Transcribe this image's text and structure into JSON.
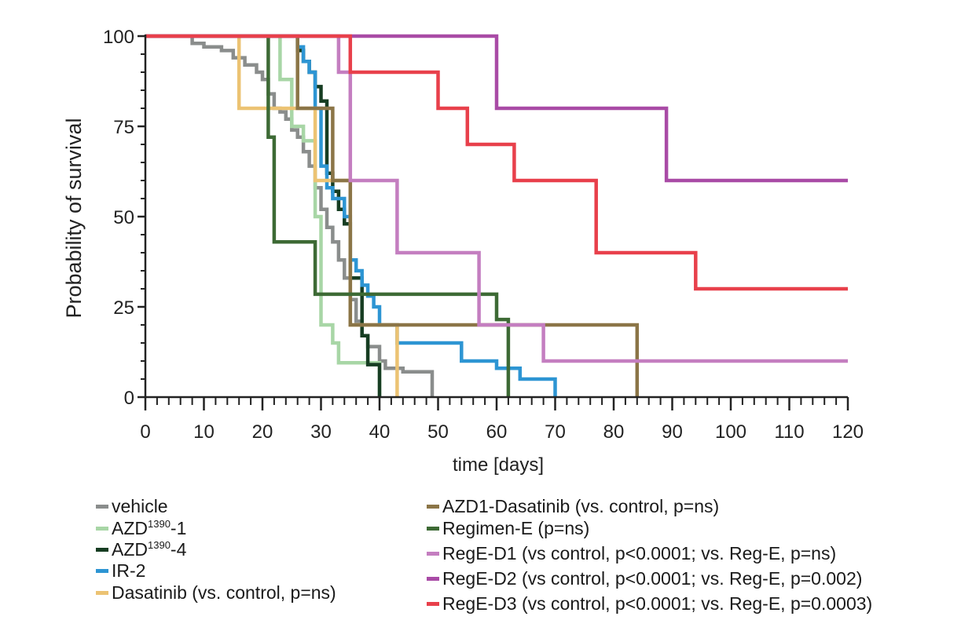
{
  "chart_data": {
    "type": "kaplan-meier",
    "xlabel": "time [days]",
    "ylabel": "Probability of survival",
    "xlim": [
      0,
      120
    ],
    "ylim": [
      0,
      100
    ],
    "x_ticks": [
      0,
      10,
      20,
      30,
      40,
      50,
      60,
      70,
      80,
      90,
      100,
      110,
      120
    ],
    "y_ticks": [
      0,
      25,
      50,
      75,
      100
    ],
    "x_minor_step": 2,
    "series": [
      {
        "name": "vehicle",
        "sup": "",
        "suffix": "",
        "color": "#8a8d8c",
        "x": [
          0,
          8,
          10,
          13,
          15,
          17,
          19,
          20,
          21,
          22,
          23,
          24,
          25,
          26,
          27,
          28,
          29,
          30,
          31,
          32,
          33,
          34,
          35,
          36,
          37,
          38,
          40,
          41,
          44,
          49
        ],
        "y": [
          100,
          98,
          97,
          96,
          94,
          92,
          90,
          88,
          84,
          80,
          79,
          77,
          74,
          72,
          68,
          64,
          58,
          52,
          47,
          43,
          38,
          33,
          27,
          21,
          17,
          14,
          10,
          8,
          7,
          0
        ]
      },
      {
        "name": "AZD",
        "sup": "1390",
        "suffix": "-1",
        "color": "#a8d6a6",
        "x": [
          0,
          23,
          25,
          27,
          29,
          30,
          32,
          33,
          40
        ],
        "y": [
          100,
          88,
          75,
          71,
          50,
          20,
          15,
          9.5,
          0
        ]
      },
      {
        "name": "AZD",
        "sup": "1390",
        "suffix": "-4",
        "color": "#163d22",
        "x": [
          0,
          26,
          27,
          28,
          29,
          30,
          31,
          32,
          33,
          34,
          35,
          37,
          38,
          40
        ],
        "y": [
          100,
          96,
          93,
          90,
          86,
          82,
          62,
          57,
          52,
          48,
          33,
          17,
          9,
          0
        ]
      },
      {
        "name": "IR-2",
        "sup": "",
        "suffix": "",
        "color": "#2d95d3",
        "x": [
          0,
          26,
          27,
          28,
          29,
          30,
          31,
          32,
          34,
          35,
          36,
          37,
          38,
          39,
          40,
          43,
          54,
          60,
          64,
          70
        ],
        "y": [
          100,
          97,
          93,
          90,
          80,
          64,
          58,
          55,
          50,
          38,
          35,
          31,
          28,
          25,
          20,
          15,
          10,
          8,
          5,
          0
        ]
      },
      {
        "name": "Dasatinib (vs. control, p=ns)",
        "sup": "",
        "suffix": "",
        "color": "#ecc373",
        "x": [
          0,
          16,
          29,
          35,
          43
        ],
        "y": [
          100,
          80,
          60,
          20,
          0
        ]
      },
      {
        "name": "AZD1-Dasatinib (vs. control, p=ns)",
        "sup": "",
        "suffix": "",
        "color": "#8b7547",
        "x": [
          0,
          26,
          32,
          35,
          84
        ],
        "y": [
          100,
          80,
          60,
          20,
          0
        ]
      },
      {
        "name": "Regimen-E (p=ns)",
        "sup": "",
        "suffix": "",
        "color": "#3d6a35",
        "x": [
          0,
          21,
          22,
          29,
          60,
          62
        ],
        "y": [
          100,
          72,
          43,
          28.5,
          21.5,
          0
        ]
      },
      {
        "name": "RegE-D1 (vs control, p<0.0001; vs. Reg-E, p=ns)",
        "sup": "",
        "suffix": "",
        "color": "#c47ec0",
        "x": [
          0,
          33,
          35,
          43,
          57,
          68,
          120
        ],
        "y": [
          100,
          90,
          60,
          40,
          20,
          10,
          10
        ]
      },
      {
        "name": "RegE-D2 (vs control, p<0.0001; vs. Reg-E, p=0.002)",
        "sup": "",
        "suffix": "",
        "color": "#a94ba6",
        "x": [
          0,
          60,
          89,
          120
        ],
        "y": [
          100,
          80,
          60,
          60
        ]
      },
      {
        "name": "RegE-D3 (vs control, p<0.0001; vs. Reg-E, p=0.0003)",
        "sup": "",
        "suffix": "",
        "color": "#e8404b",
        "x": [
          0,
          35,
          50,
          55,
          63,
          77,
          94,
          120
        ],
        "y": [
          100,
          90,
          80,
          70,
          60,
          40,
          30,
          30
        ]
      }
    ]
  }
}
